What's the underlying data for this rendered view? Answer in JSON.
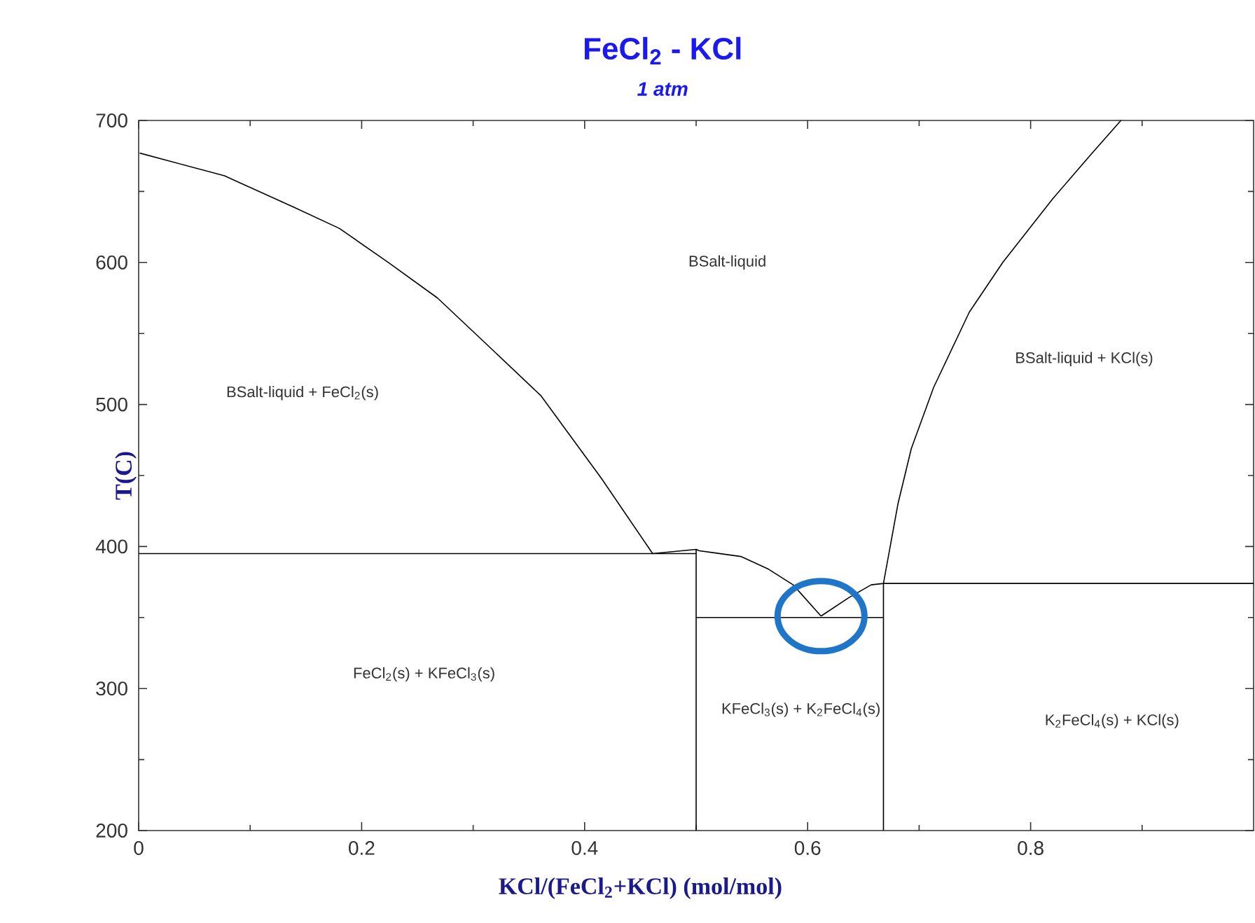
{
  "chart_data": {
    "type": "line",
    "title": "FeCl$_{2}$ - KCl",
    "subtitle": "1 atm",
    "xlabel": "KCl/(FeCl$_{2}$+KCl) (mol/mol)",
    "ylabel": "T(C)",
    "xlim": [
      0,
      1
    ],
    "ylim": [
      200,
      700
    ],
    "xticks": [
      0,
      {
        "value": 0.1,
        "label": null
      },
      0.2,
      {
        "value": 0.3,
        "label": null
      },
      0.4,
      {
        "value": 0.5,
        "label": null
      },
      0.6,
      {
        "value": 0.7,
        "label": null
      },
      0.8,
      {
        "value": 0.9,
        "label": null
      }
    ],
    "yticks": [
      200,
      {
        "value": 250,
        "label": null
      },
      300,
      {
        "value": 350,
        "label": null
      },
      400,
      {
        "value": 450,
        "label": null
      },
      500,
      {
        "value": 550,
        "label": null
      },
      600,
      {
        "value": 650,
        "label": null
      },
      700
    ],
    "series": [
      {
        "color": "#000000",
        "x": [
          0.001,
          0.077,
          0.139,
          0.18,
          0.224,
          0.268,
          0.318,
          0.361,
          0.415,
          0.461,
          0.5,
          0.503,
          0.54,
          0.565,
          0.587,
          0.612
        ],
        "values": [
          677,
          661,
          639,
          624,
          600,
          575,
          538,
          506,
          448,
          395,
          398,
          397,
          393,
          384,
          373,
          351
        ]
      },
      {
        "color": "#000000",
        "x": [
          0.612,
          0.637,
          0.657,
          0.668,
          0.681,
          0.693,
          0.713,
          0.745,
          0.775,
          0.82,
          0.854,
          0.881
        ],
        "values": [
          351,
          364,
          373,
          374,
          430,
          469,
          512,
          565,
          600,
          645,
          676,
          700
        ]
      },
      {
        "color": "#000000",
        "x": [
          0,
          0.5
        ],
        "values": [
          395,
          395
        ]
      },
      {
        "color": "#000000",
        "x": [
          0.5,
          0.5
        ],
        "values": [
          200,
          398
        ]
      },
      {
        "color": "#000000",
        "x": [
          0.5,
          0.668
        ],
        "values": [
          350,
          350
        ]
      },
      {
        "color": "#000000",
        "x": [
          0.668,
          0.668
        ],
        "values": [
          200,
          374
        ]
      },
      {
        "color": "#000000",
        "x": [
          0.668,
          1
        ],
        "values": [
          374,
          374
        ]
      }
    ],
    "annotations": [
      "BSalt-liquid",
      "BSalt-liquid + FeCl$_{2}$(s)",
      "BSalt-liquid + KCl(s)",
      "FeCl$_{2}$(s) + KFeCl$_{3}$(s)",
      "KFeCl$_{3}$(s) + K$_{2}$FeCl$_{4}$(s)",
      "K$_{2}$FeCl$_{4}$(s) + KCl(s)"
    ]
  }
}
